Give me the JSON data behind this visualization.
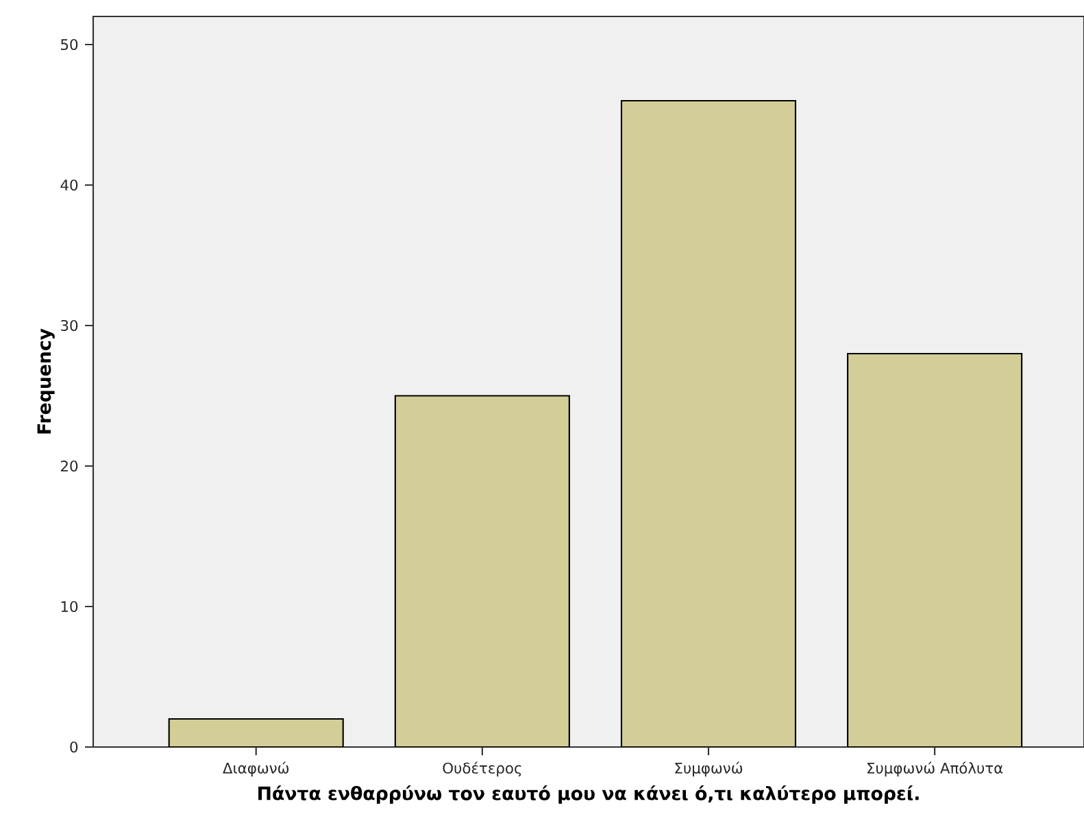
{
  "chart_data": {
    "type": "bar",
    "xlabel": "Πάντα ενθαρρύνω τον εαυτό μου να κάνει ό,τι καλύτερο μπορεί.",
    "ylabel": "Frequency",
    "categories": [
      "Διαφωνώ",
      "Ουδέτερος",
      "Συμφωνώ",
      "Συμφωνώ Απόλυτα"
    ],
    "values": [
      2,
      25,
      46,
      28
    ],
    "color": "#d3ce97",
    "ylim": [
      0,
      52
    ],
    "yticks": [
      0,
      10,
      20,
      30,
      40,
      50
    ]
  }
}
